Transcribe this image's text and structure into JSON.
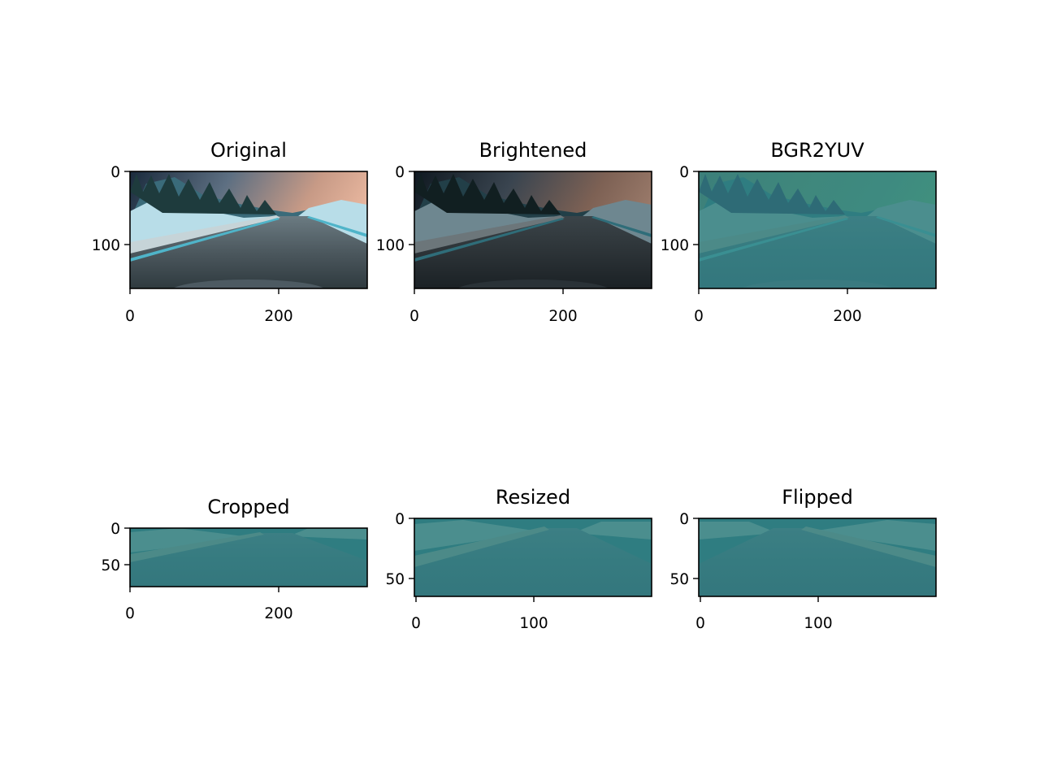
{
  "figure": {
    "panels": [
      {
        "id": "original",
        "title": "Original",
        "x_ticks": [
          "0",
          "200"
        ],
        "y_ticks": [
          "0",
          "100"
        ],
        "image": {
          "sky": [
            "#1a2a3c",
            "#5d6f82",
            "#c79a86",
            "#e9b79f"
          ],
          "mountain": "#3a6b7a",
          "snow": "#b8dde8",
          "trees": "#1e3b3d",
          "road": [
            "#6b7b82",
            "#4c585e",
            "#2f3a3f"
          ],
          "shoulder": "#c6d4d8",
          "edge": "#4fb4c9",
          "hood": "#4d5a62"
        }
      },
      {
        "id": "brightened",
        "title": "Brightened",
        "x_ticks": [
          "0",
          "200"
        ],
        "y_ticks": [
          "0",
          "100"
        ],
        "image": {
          "sky": [
            "#0f1820",
            "#3a4550",
            "#7d6154",
            "#9a7a6a"
          ],
          "mountain": "#223f48",
          "snow": "#6e8790",
          "trees": "#111f21",
          "road": [
            "#3b4449",
            "#2c3337",
            "#1b2125"
          ],
          "shoulder": "#6c767a",
          "edge": "#2f6d79",
          "hood": "#2a3237"
        }
      },
      {
        "id": "yuv",
        "title": "BGR2YUV",
        "x_ticks": [
          "0",
          "200"
        ],
        "y_ticks": [
          "0",
          "100"
        ],
        "image": {
          "sky": [
            "#3c7f7a",
            "#3f877c",
            "#3e8a80",
            "#40907e"
          ],
          "mountain": "#2f7d81",
          "snow": "#4b8e8e",
          "trees": "#2e6b76",
          "road": [
            "#3c7f84",
            "#367b80",
            "#34777d"
          ],
          "shoulder": "#4c8a88",
          "edge": "#3a8f92",
          "hood": "#3a7a80"
        }
      },
      {
        "id": "cropped",
        "title": "Cropped",
        "x_ticks": [
          "0",
          "200"
        ],
        "y_ticks": [
          "0",
          "50"
        ],
        "image": {
          "sky": [
            "#3e8780",
            "#3e8780",
            "#3e8780",
            "#3e8780"
          ],
          "mountain": "#2f7d81",
          "snow": "#4b8e8e",
          "trees": "#2e6b76",
          "road": [
            "#3c7f84",
            "#367b80",
            "#34777d"
          ],
          "shoulder": "#4c8a88",
          "edge": "#3a8f92",
          "hood": "#3a7a80"
        }
      },
      {
        "id": "resized",
        "title": "Resized",
        "x_ticks": [
          "0",
          "100"
        ],
        "y_ticks": [
          "0",
          "50"
        ],
        "image": {
          "sky": [
            "#3e8780",
            "#3e8780",
            "#3e8780",
            "#3e8780"
          ],
          "mountain": "#2f7d81",
          "snow": "#4b8e8e",
          "trees": "#2e6b76",
          "road": [
            "#3c7f84",
            "#367b80",
            "#34777d"
          ],
          "shoulder": "#4c8a88",
          "edge": "#3a8f92",
          "hood": "#3a7a80"
        }
      },
      {
        "id": "flipped",
        "title": "Flipped",
        "x_ticks": [
          "0",
          "100"
        ],
        "y_ticks": [
          "0",
          "50"
        ],
        "image": {
          "sky": [
            "#3e8780",
            "#3e8780",
            "#3e8780",
            "#3e8780"
          ],
          "mountain": "#2f7d81",
          "snow": "#4b8e8e",
          "trees": "#2e6b76",
          "road": [
            "#3c7f84",
            "#367b80",
            "#34777d"
          ],
          "shoulder": "#4c8a88",
          "edge": "#3a8f92",
          "hood": "#3a7a80"
        }
      }
    ]
  }
}
